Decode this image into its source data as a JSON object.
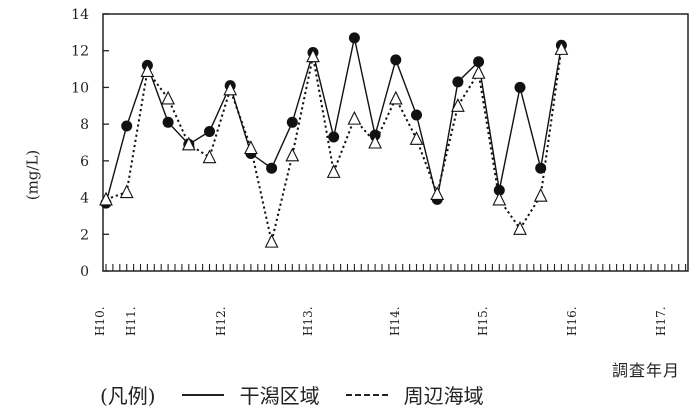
{
  "chart_data": {
    "type": "line",
    "ylabel": "(mg/L)",
    "xlabel": "調査年月",
    "ylim": [
      0,
      14
    ],
    "yticks": [
      0,
      2,
      4,
      6,
      8,
      10,
      12,
      14
    ],
    "year_labels": [
      "H10.",
      "H11.",
      "H12.",
      "H13.",
      "H14.",
      "H15.",
      "H16.",
      "H17."
    ],
    "x": [
      1,
      2,
      3,
      4,
      5,
      6,
      7,
      8,
      9,
      10,
      11,
      12,
      13,
      14,
      15,
      16,
      17,
      18,
      19,
      20,
      21,
      22,
      23,
      24,
      25,
      26,
      27
    ],
    "series": [
      {
        "name": "干潟区域",
        "style": "solid",
        "marker": "filled-circle",
        "values": [
          3.7,
          7.9,
          11.2,
          8.1,
          6.9,
          7.6,
          10.1,
          6.4,
          5.6,
          8.1,
          11.9,
          7.3,
          12.7,
          7.4,
          11.5,
          8.5,
          3.9,
          10.3,
          11.4,
          4.4,
          10.0,
          5.6,
          12.3,
          null,
          null,
          null,
          null
        ]
      },
      {
        "name": "周辺海域",
        "style": "dashed",
        "marker": "open-triangle",
        "values": [
          3.9,
          4.3,
          10.9,
          9.4,
          6.9,
          6.2,
          9.9,
          6.7,
          1.6,
          6.3,
          11.7,
          5.4,
          8.3,
          7.0,
          9.4,
          7.2,
          4.2,
          9.0,
          10.8,
          3.9,
          2.3,
          4.1,
          12.1,
          null,
          null,
          null,
          null
        ]
      }
    ],
    "legend": {
      "label": "(凡例)",
      "entries": [
        "干潟区域",
        "周辺海域"
      ],
      "placement": "bottom"
    },
    "grid": false
  }
}
